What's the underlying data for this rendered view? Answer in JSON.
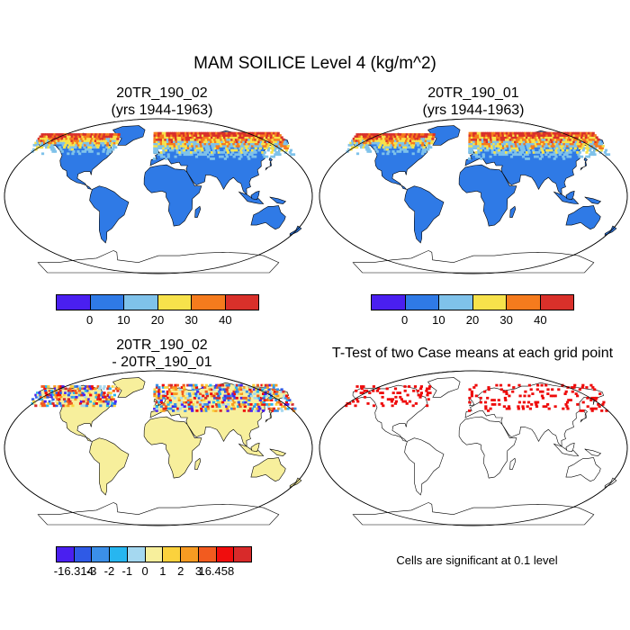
{
  "title": "MAM SOILICE Level 4 (kg/m^2)",
  "panels": [
    {
      "id": "case1",
      "title_line1": "20TR_190_02",
      "title_line2": "(yrs 1944-1963)",
      "kind": "field"
    },
    {
      "id": "case2",
      "title_line1": "20TR_190_01",
      "title_line2": "(yrs 1944-1963)",
      "kind": "field"
    },
    {
      "id": "diff",
      "title_line1": "20TR_190_02",
      "title_line2": "- 20TR_190_01",
      "kind": "diff"
    },
    {
      "id": "ttest",
      "title_line1": "T-Test of two Case means at each grid point",
      "kind": "ttest"
    }
  ],
  "colorbars": {
    "field": {
      "colors": [
        "#4a1ff0",
        "#2f7ae6",
        "#7fc2ea",
        "#f7e24b",
        "#f57b1d",
        "#d9302a"
      ],
      "labels": [
        "0",
        "10",
        "20",
        "30",
        "40"
      ]
    },
    "diff": {
      "colors": [
        "#4a1ff0",
        "#2f5ae6",
        "#3b8fe8",
        "#27b6f0",
        "#a5d8f0",
        "#f7ef9c",
        "#fbd23d",
        "#f79b22",
        "#f25b1f",
        "#f00d0d",
        "#d82a2a"
      ],
      "labels": [
        "-16.314",
        "-3",
        "-2",
        "-1",
        "0",
        "1",
        "2",
        "3",
        "16.458"
      ]
    }
  },
  "significance_note": "Cells are significant at 0.1 level",
  "map_colors": {
    "ocean_field": "#2f7ae6",
    "ocean_diff": "#f7ef9c",
    "sig_cell": "#ee0a0a"
  }
}
